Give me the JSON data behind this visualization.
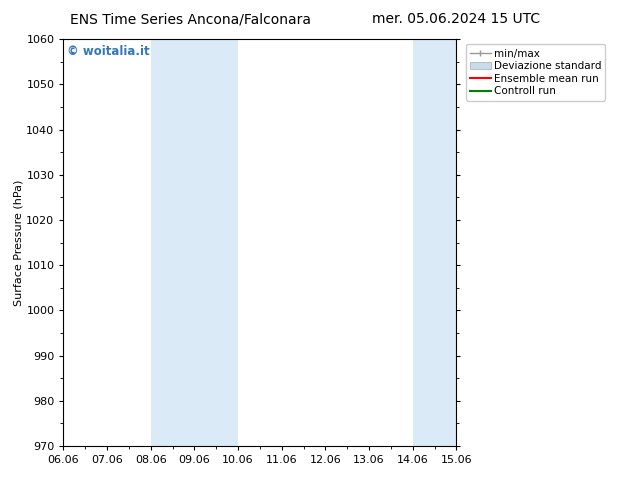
{
  "title_left": "ENS Time Series Ancona/Falconara",
  "title_right": "mer. 05.06.2024 15 UTC",
  "ylabel": "Surface Pressure (hPa)",
  "ylim": [
    970,
    1060
  ],
  "yticks": [
    970,
    980,
    990,
    1000,
    1010,
    1020,
    1030,
    1040,
    1050,
    1060
  ],
  "x_labels": [
    "06.06",
    "07.06",
    "08.06",
    "09.06",
    "10.06",
    "11.06",
    "12.06",
    "13.06",
    "14.06",
    "15.06"
  ],
  "x_values": [
    0,
    1,
    2,
    3,
    4,
    5,
    6,
    7,
    8,
    9
  ],
  "xlim": [
    0,
    9
  ],
  "shaded_bands": [
    {
      "x_start": 2,
      "x_end": 3,
      "color": "#daeaf7"
    },
    {
      "x_start": 3,
      "x_end": 4,
      "color": "#daeaf7"
    },
    {
      "x_start": 8,
      "x_end": 9,
      "color": "#daeaf7"
    }
  ],
  "legend_entries": [
    {
      "label": "min/max",
      "color": "#999999",
      "lw": 1,
      "type": "line_with_caps"
    },
    {
      "label": "Deviazione standard",
      "color": "#c8dced",
      "lw": 8,
      "type": "rect"
    },
    {
      "label": "Ensemble mean run",
      "color": "red",
      "lw": 1.5,
      "type": "line"
    },
    {
      "label": "Controll run",
      "color": "green",
      "lw": 1.5,
      "type": "line"
    }
  ],
  "watermark": "© woitalia.it",
  "watermark_color": "#3377bb",
  "bg_color": "#ffffff",
  "title_fontsize": 10,
  "axis_label_fontsize": 8,
  "tick_fontsize": 8,
  "legend_fontsize": 7.5
}
